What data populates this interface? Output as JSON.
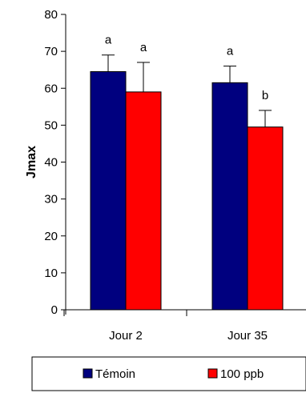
{
  "chart_data": {
    "type": "bar",
    "title": "",
    "xlabel": "",
    "ylabel": "Jmax",
    "ylim": [
      0,
      80
    ],
    "yticks": [
      "0",
      "10",
      "20",
      "30",
      "40",
      "50",
      "60",
      "70",
      "80"
    ],
    "categories": [
      "Jour 2",
      "Jour 35"
    ],
    "series": [
      {
        "name": "Témoin",
        "color": "#00007f",
        "values": [
          64.5,
          61.5
        ],
        "errors": [
          4.5,
          4.5
        ],
        "letters": [
          "a",
          "a"
        ]
      },
      {
        "name": "100 ppb",
        "color": "#ff0000",
        "values": [
          59,
          49.5
        ],
        "errors": [
          8,
          4.5
        ],
        "letters": [
          "a",
          "b"
        ]
      }
    ],
    "legend_position": "bottom",
    "grid": false
  }
}
